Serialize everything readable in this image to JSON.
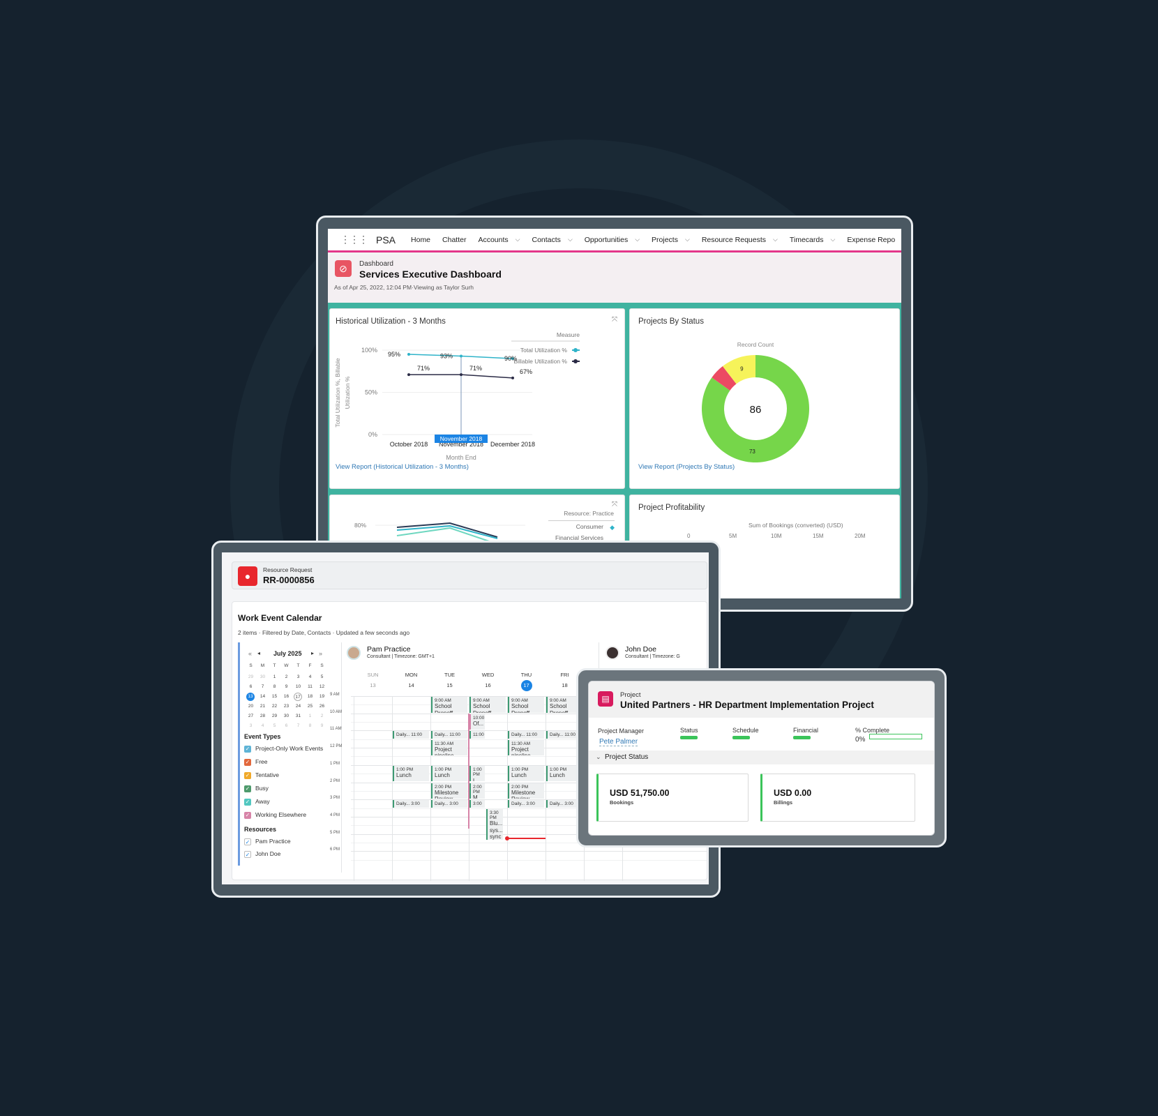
{
  "nav": {
    "app_name": "PSA",
    "items": [
      {
        "label": "Home",
        "dropdown": false
      },
      {
        "label": "Chatter",
        "dropdown": false
      },
      {
        "label": "Accounts",
        "dropdown": true
      },
      {
        "label": "Contacts",
        "dropdown": true
      },
      {
        "label": "Opportunities",
        "dropdown": true
      },
      {
        "label": "Projects",
        "dropdown": true
      },
      {
        "label": "Resource Requests",
        "dropdown": true
      },
      {
        "label": "Timecards",
        "dropdown": true
      },
      {
        "label": "Expense Repo",
        "dropdown": false
      }
    ]
  },
  "dashboard": {
    "type_label": "Dashboard",
    "title": "Services Executive Dashboard",
    "subtitle": "As of Apr 25, 2022, 12:04 PM·Viewing as Taylor Surh",
    "accent": "#e3368a"
  },
  "utilization": {
    "title": "Historical Utilization - 3 Months",
    "link": "View Report (Historical Utilization - 3 Months)",
    "tooltip": "November 2018"
  },
  "projects_by_status": {
    "title": "Projects By Status",
    "link": "View Report (Projects By Status)"
  },
  "practice_chart": {
    "legend_title": "Resource: Practice",
    "legend": [
      "Consumer",
      "Financial Services"
    ],
    "tick": "80%"
  },
  "profitability": {
    "title": "Project Profitability",
    "axis_label": "Sum of Bookings (converted) (USD)",
    "ticks": [
      "0",
      "5M",
      "10M",
      "15M",
      "20M"
    ]
  },
  "chart_data": [
    {
      "type": "line",
      "title": "Historical Utilization - 3 Months",
      "xlabel": "Month End",
      "ylabel": "Total Utilization %, Billable Utilization %",
      "categories": [
        "October 2018",
        "November 2018",
        "December 2018"
      ],
      "yticks": [
        "0%",
        "50%",
        "100%"
      ],
      "ylim": [
        0,
        100
      ],
      "legend_title": "Measure",
      "legend_position": "right",
      "series": [
        {
          "name": "Total Utilization %",
          "color": "#2eb3c9",
          "values": [
            95,
            93,
            90
          ],
          "labels": [
            "95%",
            "93%",
            "90%"
          ]
        },
        {
          "name": "Billable Utilization %",
          "color": "#2a2a45",
          "values": [
            71,
            71,
            67
          ],
          "labels": [
            "71%",
            "71%",
            "67%"
          ]
        }
      ]
    },
    {
      "type": "pie",
      "title": "Projects By Status",
      "subtitle": "Record Count",
      "total": "86",
      "slices": [
        {
          "value": 73,
          "label": "73",
          "color": "#76d64a"
        },
        {
          "value": 4,
          "label": "",
          "color": "#ec4a63"
        },
        {
          "value": 9,
          "label": "9",
          "color": "#f6f35a"
        }
      ]
    }
  ],
  "resource_request": {
    "type_label": "Resource Request",
    "id": "RR-0000856"
  },
  "calendar": {
    "title": "Work Event Calendar",
    "meta": "2 items  ·  Filtered by Date, Contacts  ·  Updated a few seconds ago",
    "month": "July 2025",
    "weekdays": [
      "S",
      "M",
      "T",
      "W",
      "T",
      "F",
      "S"
    ],
    "weeks": [
      [
        "29",
        "30",
        "1",
        "2",
        "3",
        "4",
        "5"
      ],
      [
        "6",
        "7",
        "8",
        "9",
        "10",
        "11",
        "12"
      ],
      [
        "13",
        "14",
        "15",
        "16",
        "17",
        "18",
        "19"
      ],
      [
        "20",
        "21",
        "22",
        "23",
        "24",
        "25",
        "26"
      ],
      [
        "27",
        "28",
        "29",
        "30",
        "31",
        "1",
        "2"
      ],
      [
        "3",
        "4",
        "5",
        "6",
        "7",
        "8",
        "9"
      ]
    ],
    "event_types_title": "Event Types",
    "event_types": [
      {
        "label": "Project-Only Work Events",
        "color": "#5fb4d6"
      },
      {
        "label": "Free",
        "color": "#e2683c"
      },
      {
        "label": "Tentative",
        "color": "#f0a92a"
      },
      {
        "label": "Busy",
        "color": "#4e9a6c"
      },
      {
        "label": "Away",
        "color": "#52c7c0"
      },
      {
        "label": "Working Elsewhere",
        "color": "#d784a8"
      }
    ],
    "resources_title": "Resources",
    "resources": [
      "Pam Practice",
      "John Doe"
    ],
    "resource1": {
      "name": "Pam Practice",
      "role": "Consultant | Timezone: GMT+1"
    },
    "resource2": {
      "name": "John Doe",
      "role": "Consultant | Timezone: G"
    },
    "days": [
      {
        "name": "SUN",
        "date": "13"
      },
      {
        "name": "MON",
        "date": "14"
      },
      {
        "name": "TUE",
        "date": "15"
      },
      {
        "name": "WED",
        "date": "16"
      },
      {
        "name": "THU",
        "date": "17",
        "today": true
      },
      {
        "name": "FRI",
        "date": "18"
      }
    ],
    "hours": [
      "9 AM",
      "10 AM",
      "11 AM",
      "12 PM",
      "1 PM",
      "2 PM",
      "3 PM",
      "4 PM",
      "5 PM",
      "6 PM"
    ],
    "events": [
      {
        "day": 2,
        "start": 9,
        "end": 10,
        "time": "9:00 AM",
        "title": "School Dropoff"
      },
      {
        "day": 3,
        "start": 9,
        "end": 10,
        "time": "9:00 AM",
        "title": "School Dropoff"
      },
      {
        "day": 4,
        "start": 9,
        "end": 10,
        "time": "9:00 AM",
        "title": "School Dropoff"
      },
      {
        "day": 5,
        "start": 9,
        "end": 10,
        "time": "9:00 AM",
        "title": "School Dropoff"
      },
      {
        "day": 3,
        "start": 10,
        "end": 11,
        "time": "10:00",
        "title": "Of...",
        "narrow": true,
        "color": "#d784a8"
      },
      {
        "day": 1,
        "start": 11,
        "end": 11.5,
        "time": "Daily... 11:00 am",
        "title": ""
      },
      {
        "day": 2,
        "start": 11,
        "end": 11.5,
        "time": "Daily... 11:00 am",
        "title": ""
      },
      {
        "day": 3,
        "start": 11,
        "end": 11.5,
        "time": "11:00",
        "title": "",
        "narrow": true
      },
      {
        "day": 4,
        "start": 11,
        "end": 11.5,
        "time": "Daily... 11:00 am",
        "title": ""
      },
      {
        "day": 5,
        "start": 11,
        "end": 11.5,
        "time": "Daily... 11:00 am",
        "title": ""
      },
      {
        "day": 2,
        "start": 11.5,
        "end": 12.5,
        "time": "11:30 AM",
        "title": "Project pipeline"
      },
      {
        "day": 4,
        "start": 11.5,
        "end": 12.5,
        "time": "11:30 AM",
        "title": "Project pipeline"
      },
      {
        "day": 1,
        "start": 13,
        "end": 14,
        "time": "1:00 PM",
        "title": "Lunch"
      },
      {
        "day": 2,
        "start": 13,
        "end": 14,
        "time": "1:00 PM",
        "title": "Lunch"
      },
      {
        "day": 3,
        "start": 13,
        "end": 14,
        "time": "1:00 PM",
        "title": "L...",
        "narrow": true
      },
      {
        "day": 4,
        "start": 13,
        "end": 14,
        "time": "1:00 PM",
        "title": "Lunch"
      },
      {
        "day": 5,
        "start": 13,
        "end": 14,
        "time": "1:00 PM",
        "title": "Lunch"
      },
      {
        "day": 2,
        "start": 14,
        "end": 15,
        "time": "2:00 PM",
        "title": "Milestone Review"
      },
      {
        "day": 3,
        "start": 14,
        "end": 15,
        "time": "2:00 PM",
        "title": "M... R",
        "narrow": true
      },
      {
        "day": 4,
        "start": 14,
        "end": 15,
        "time": "2:00 PM",
        "title": "Milestone Review"
      },
      {
        "day": 1,
        "start": 15,
        "end": 15.5,
        "time": "Daily... 3:00 pm",
        "title": ""
      },
      {
        "day": 2,
        "start": 15,
        "end": 15.5,
        "time": "Daily... 3:00 pm",
        "title": ""
      },
      {
        "day": 3,
        "start": 15,
        "end": 15.5,
        "time": "3:00",
        "title": "",
        "narrow": true
      },
      {
        "day": 4,
        "start": 15,
        "end": 15.5,
        "time": "Daily... 3:00 pm",
        "title": ""
      },
      {
        "day": 5,
        "start": 15,
        "end": 15.5,
        "time": "Daily... 3:00 pm",
        "title": ""
      },
      {
        "day": 3,
        "start": 15.5,
        "end": 17.4,
        "time": "3:30 PM",
        "title": "Blu... sys... sync",
        "offset": true
      }
    ]
  },
  "project": {
    "type_label": "Project",
    "title": "United Partners - HR Department Implementation Project",
    "manager_label": "Project Manager",
    "manager": "Pete Palmer",
    "status_label": "Status",
    "schedule_label": "Schedule",
    "financial_label": "Financial",
    "complete_label": "% Complete",
    "complete_value": "0%",
    "complete_fraction": 0,
    "indicator_color": "#3bc45a",
    "section": "Project Status",
    "bookings_value": "USD 51,750.00",
    "bookings_label": "Bookings",
    "billings_value": "USD 0.00",
    "billings_label": "Billings"
  }
}
